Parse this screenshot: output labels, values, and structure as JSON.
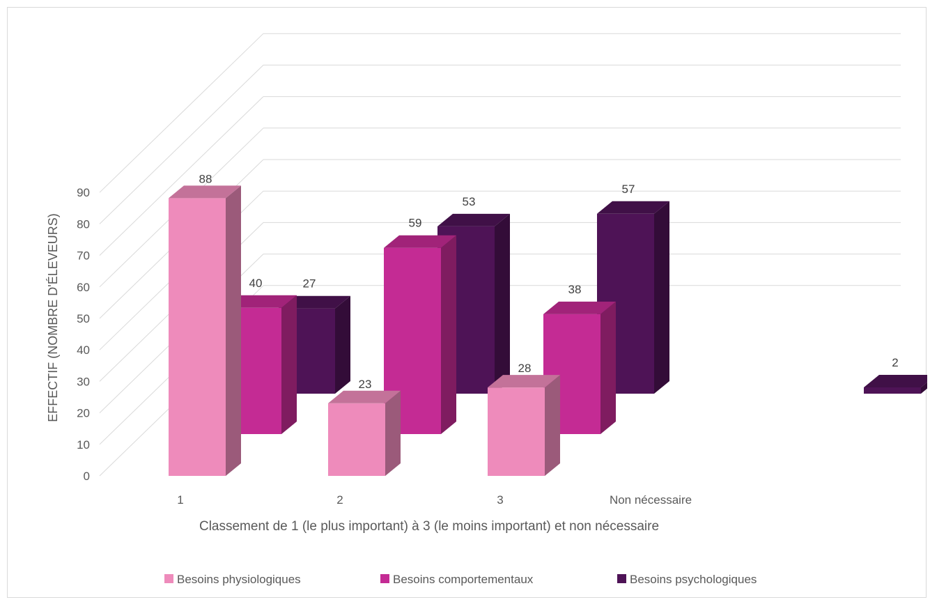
{
  "chart_data": {
    "type": "bar",
    "is_3d": true,
    "categories": [
      "1",
      "2",
      "3",
      "Non nécessaire"
    ],
    "series": [
      {
        "name": "Besoins physiologiques",
        "values": [
          88,
          23,
          28,
          null
        ],
        "color": "#ee8bbb"
      },
      {
        "name": "Besoins comportementaux",
        "values": [
          40,
          59,
          38,
          null
        ],
        "color": "#c42b94"
      },
      {
        "name": "Besoins psychologiques",
        "values": [
          27,
          53,
          57,
          2
        ],
        "color": "#4e1356"
      }
    ],
    "ylabel": "EFFECTIF (NOMBRE D'ÉLEVEURS)",
    "xlabel": "Classement de 1 (le plus important) à 3 (le moins important) et non nécessaire",
    "ylim": [
      0,
      90
    ],
    "yticks": [
      "0",
      "10",
      "20",
      "30",
      "40",
      "50",
      "60",
      "70",
      "80",
      "90"
    ],
    "grid": true,
    "legend_position": "bottom"
  }
}
